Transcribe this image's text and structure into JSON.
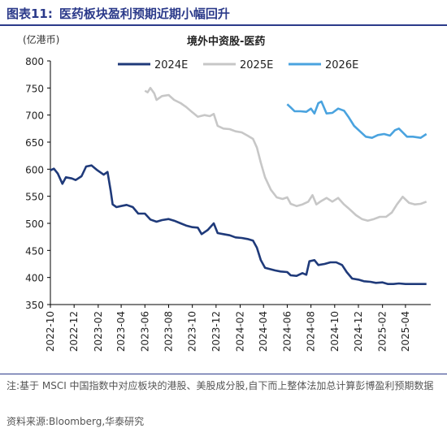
{
  "figure": {
    "number": "图表11:",
    "title": "医药板块盈利预期近期小幅回升",
    "unit": "(亿港币)",
    "note": "注:基于 MSCI 中国指数中对应板块的港股、美股成分股,自下而上整体法加总计算彭博盈利预期数据",
    "source": "资料来源:Bloomberg,华泰研究"
  },
  "chart_data": {
    "type": "line",
    "title": "境外中资股-医药",
    "xlabel": "",
    "ylabel": "(亿港币)",
    "ylim": [
      350,
      800
    ],
    "yticks": [
      350,
      400,
      450,
      500,
      550,
      600,
      650,
      700,
      750,
      800
    ],
    "xticks": [
      "2022-10",
      "2022-12",
      "2023-02",
      "2023-04",
      "2023-06",
      "2023-08",
      "2023-10",
      "2023-12",
      "2024-02",
      "2024-04",
      "2024-06",
      "2024-08",
      "2024-10",
      "2024-12",
      "2025-02",
      "2025-04"
    ],
    "legend_position": "top",
    "grid": false,
    "series": [
      {
        "name": "2024E",
        "color": "#1f3a7a",
        "points": [
          [
            "2022-10-01",
            598
          ],
          [
            "2022-10-10",
            601
          ],
          [
            "2022-10-20",
            592
          ],
          [
            "2022-11-01",
            573
          ],
          [
            "2022-11-10",
            585
          ],
          [
            "2022-11-25",
            583
          ],
          [
            "2022-12-05",
            580
          ],
          [
            "2022-12-20",
            587
          ],
          [
            "2023-01-01",
            605
          ],
          [
            "2023-01-15",
            607
          ],
          [
            "2023-01-30",
            598
          ],
          [
            "2023-02-15",
            590
          ],
          [
            "2023-02-25",
            595
          ],
          [
            "2023-03-05",
            560
          ],
          [
            "2023-03-10",
            535
          ],
          [
            "2023-03-20",
            530
          ],
          [
            "2023-04-01",
            532
          ],
          [
            "2023-04-15",
            534
          ],
          [
            "2023-05-01",
            530
          ],
          [
            "2023-05-15",
            518
          ],
          [
            "2023-06-01",
            518
          ],
          [
            "2023-06-15",
            507
          ],
          [
            "2023-07-01",
            503
          ],
          [
            "2023-07-15",
            506
          ],
          [
            "2023-08-01",
            508
          ],
          [
            "2023-08-15",
            505
          ],
          [
            "2023-09-01",
            500
          ],
          [
            "2023-09-15",
            496
          ],
          [
            "2023-10-01",
            493
          ],
          [
            "2023-10-15",
            492
          ],
          [
            "2023-10-25",
            480
          ],
          [
            "2023-11-10",
            488
          ],
          [
            "2023-11-25",
            500
          ],
          [
            "2023-12-05",
            482
          ],
          [
            "2023-12-20",
            480
          ],
          [
            "2024-01-05",
            478
          ],
          [
            "2024-01-20",
            474
          ],
          [
            "2024-02-05",
            473
          ],
          [
            "2024-02-20",
            471
          ],
          [
            "2024-03-05",
            468
          ],
          [
            "2024-03-15",
            455
          ],
          [
            "2024-03-25",
            432
          ],
          [
            "2024-04-05",
            418
          ],
          [
            "2024-04-15",
            416
          ],
          [
            "2024-05-01",
            413
          ],
          [
            "2024-05-15",
            411
          ],
          [
            "2024-06-01",
            410
          ],
          [
            "2024-06-10",
            404
          ],
          [
            "2024-06-25",
            403
          ],
          [
            "2024-07-10",
            408
          ],
          [
            "2024-07-20",
            405
          ],
          [
            "2024-07-28",
            430
          ],
          [
            "2024-08-10",
            432
          ],
          [
            "2024-08-20",
            423
          ],
          [
            "2024-09-05",
            425
          ],
          [
            "2024-09-20",
            428
          ],
          [
            "2024-10-05",
            428
          ],
          [
            "2024-10-20",
            423
          ],
          [
            "2024-11-01",
            410
          ],
          [
            "2024-11-15",
            398
          ],
          [
            "2024-12-01",
            396
          ],
          [
            "2024-12-15",
            393
          ],
          [
            "2025-01-01",
            392
          ],
          [
            "2025-01-15",
            390
          ],
          [
            "2025-02-01",
            391
          ],
          [
            "2025-02-15",
            388
          ],
          [
            "2025-03-01",
            388
          ],
          [
            "2025-03-15",
            389
          ],
          [
            "2025-04-01",
            388
          ],
          [
            "2025-04-20",
            388
          ],
          [
            "2025-05-10",
            388
          ],
          [
            "2025-05-25",
            388
          ]
        ]
      },
      {
        "name": "2025E",
        "color": "#c7c7c7",
        "points": [
          [
            "2023-06-01",
            745
          ],
          [
            "2023-06-08",
            742
          ],
          [
            "2023-06-15",
            750
          ],
          [
            "2023-06-25",
            740
          ],
          [
            "2023-07-01",
            728
          ],
          [
            "2023-07-15",
            735
          ],
          [
            "2023-08-01",
            737
          ],
          [
            "2023-08-15",
            728
          ],
          [
            "2023-09-01",
            722
          ],
          [
            "2023-09-15",
            715
          ],
          [
            "2023-10-01",
            705
          ],
          [
            "2023-10-15",
            697
          ],
          [
            "2023-11-01",
            700
          ],
          [
            "2023-11-15",
            698
          ],
          [
            "2023-11-25",
            702
          ],
          [
            "2023-12-05",
            680
          ],
          [
            "2023-12-20",
            675
          ],
          [
            "2024-01-05",
            674
          ],
          [
            "2024-01-20",
            670
          ],
          [
            "2024-02-05",
            668
          ],
          [
            "2024-02-20",
            662
          ],
          [
            "2024-03-05",
            656
          ],
          [
            "2024-03-15",
            640
          ],
          [
            "2024-03-25",
            612
          ],
          [
            "2024-04-05",
            585
          ],
          [
            "2024-04-20",
            562
          ],
          [
            "2024-05-05",
            548
          ],
          [
            "2024-05-20",
            545
          ],
          [
            "2024-06-01",
            548
          ],
          [
            "2024-06-10",
            536
          ],
          [
            "2024-06-25",
            532
          ],
          [
            "2024-07-10",
            535
          ],
          [
            "2024-07-25",
            540
          ],
          [
            "2024-08-05",
            552
          ],
          [
            "2024-08-15",
            535
          ],
          [
            "2024-08-25",
            540
          ],
          [
            "2024-09-10",
            547
          ],
          [
            "2024-09-25",
            540
          ],
          [
            "2024-10-10",
            547
          ],
          [
            "2024-10-25",
            535
          ],
          [
            "2024-11-10",
            525
          ],
          [
            "2024-11-25",
            515
          ],
          [
            "2024-12-10",
            508
          ],
          [
            "2024-12-25",
            505
          ],
          [
            "2025-01-10",
            508
          ],
          [
            "2025-01-25",
            512
          ],
          [
            "2025-02-10",
            512
          ],
          [
            "2025-02-25",
            520
          ],
          [
            "2025-03-10",
            535
          ],
          [
            "2025-03-25",
            549
          ],
          [
            "2025-04-10",
            538
          ],
          [
            "2025-04-25",
            535
          ],
          [
            "2025-05-10",
            536
          ],
          [
            "2025-05-25",
            540
          ]
        ]
      },
      {
        "name": "2026E",
        "color": "#4aa3df",
        "points": [
          [
            "2024-06-01",
            720
          ],
          [
            "2024-06-10",
            714
          ],
          [
            "2024-06-20",
            707
          ],
          [
            "2024-07-05",
            707
          ],
          [
            "2024-07-20",
            706
          ],
          [
            "2024-08-01",
            712
          ],
          [
            "2024-08-10",
            703
          ],
          [
            "2024-08-20",
            722
          ],
          [
            "2024-08-28",
            725
          ],
          [
            "2024-09-10",
            703
          ],
          [
            "2024-09-25",
            704
          ],
          [
            "2024-10-10",
            712
          ],
          [
            "2024-10-25",
            708
          ],
          [
            "2024-11-05",
            697
          ],
          [
            "2024-11-20",
            680
          ],
          [
            "2024-12-05",
            670
          ],
          [
            "2024-12-20",
            660
          ],
          [
            "2025-01-05",
            658
          ],
          [
            "2025-01-20",
            663
          ],
          [
            "2025-02-05",
            665
          ],
          [
            "2025-02-20",
            662
          ],
          [
            "2025-03-05",
            672
          ],
          [
            "2025-03-15",
            675
          ],
          [
            "2025-03-25",
            668
          ],
          [
            "2025-04-05",
            660
          ],
          [
            "2025-04-20",
            660
          ],
          [
            "2025-05-10",
            658
          ],
          [
            "2025-05-25",
            665
          ]
        ]
      }
    ]
  }
}
